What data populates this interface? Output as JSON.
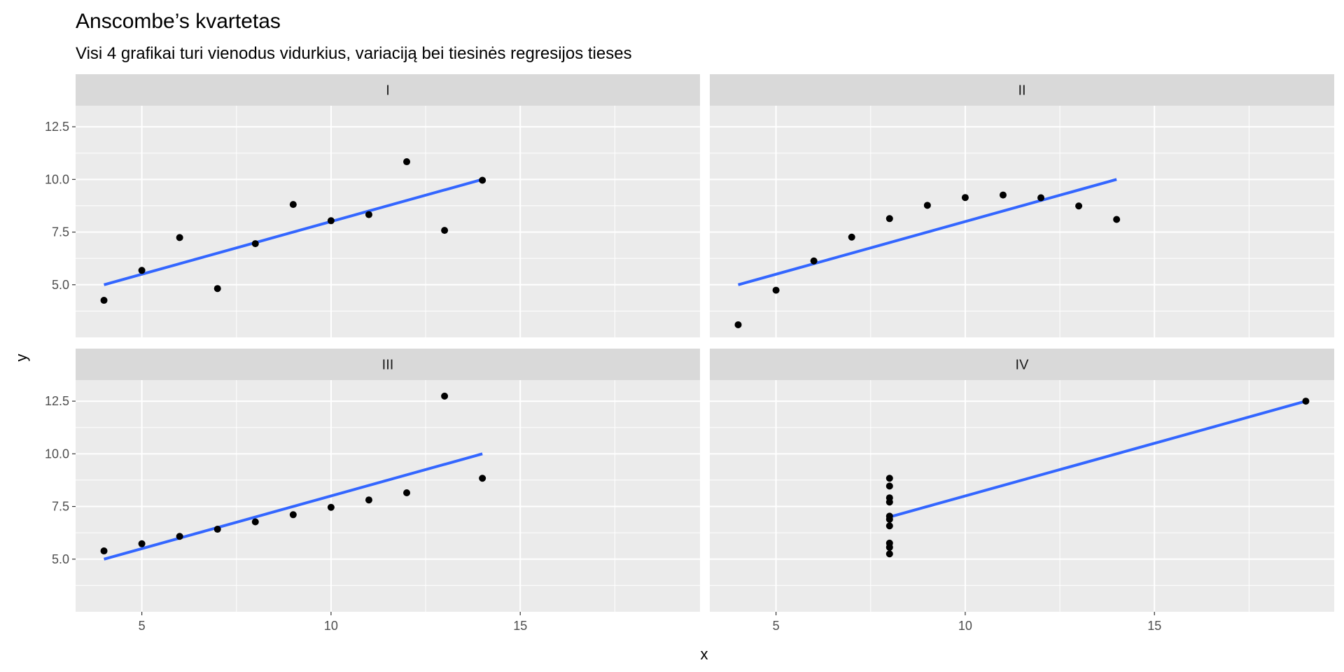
{
  "chart_data": {
    "type": "scatter",
    "title": "Anscombe’s kvartetas",
    "subtitle": "Visi 4 grafikai turi vienodus vidurkius, variaciją bei tiesinės regresijos tieses",
    "xlabel": "x",
    "ylabel": "y",
    "xlim": [
      3.25,
      19.75
    ],
    "ylim": [
      2.5,
      13.5
    ],
    "x_ticks": [
      5,
      10,
      15
    ],
    "y_ticks": [
      5.0,
      7.5,
      10.0,
      12.5
    ],
    "y_tick_labels": [
      "5.0",
      "7.5",
      "10.0",
      "12.5"
    ],
    "grid": true,
    "point_color": "#000000",
    "line_color": "#3366FF",
    "panel_background": "#EBEBEB",
    "strip_background": "#D9D9D9",
    "regression": {
      "intercept": 3.0,
      "slope": 0.5
    },
    "panels": [
      {
        "label": "I",
        "x": [
          10,
          8,
          13,
          9,
          11,
          14,
          6,
          4,
          12,
          7,
          5
        ],
        "y": [
          8.04,
          6.95,
          7.58,
          8.81,
          8.33,
          9.96,
          7.24,
          4.26,
          10.84,
          4.82,
          5.68
        ],
        "line_x": [
          4,
          14
        ]
      },
      {
        "label": "II",
        "x": [
          10,
          8,
          13,
          9,
          11,
          14,
          6,
          4,
          12,
          7,
          5
        ],
        "y": [
          9.14,
          8.14,
          8.74,
          8.77,
          9.26,
          8.1,
          6.13,
          3.1,
          9.13,
          7.26,
          4.74
        ],
        "line_x": [
          4,
          14
        ]
      },
      {
        "label": "III",
        "x": [
          10,
          8,
          13,
          9,
          11,
          14,
          6,
          4,
          12,
          7,
          5
        ],
        "y": [
          7.46,
          6.77,
          12.74,
          7.11,
          7.81,
          8.84,
          6.08,
          5.39,
          8.15,
          6.42,
          5.73
        ],
        "line_x": [
          4,
          14
        ]
      },
      {
        "label": "IV",
        "x": [
          8,
          8,
          8,
          8,
          8,
          8,
          8,
          19,
          8,
          8,
          8
        ],
        "y": [
          6.58,
          5.76,
          7.71,
          8.84,
          8.47,
          7.04,
          5.25,
          12.5,
          5.56,
          7.91,
          6.89
        ],
        "line_x": [
          8,
          19
        ]
      }
    ]
  }
}
